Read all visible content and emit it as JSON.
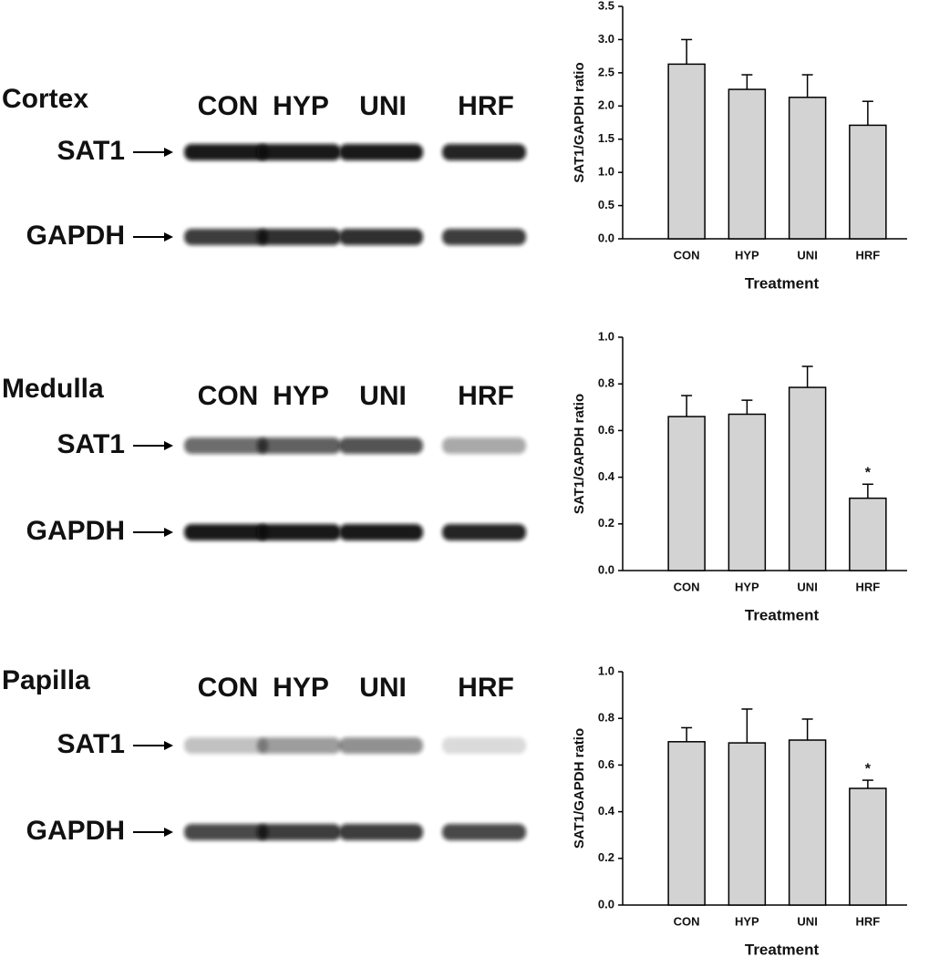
{
  "blots": [
    {
      "region": "Cortex",
      "lanes": [
        "CON",
        "HYP",
        "UNI",
        "HRF"
      ],
      "bands": [
        "SAT1",
        "GAPDH"
      ]
    },
    {
      "region": "Medulla",
      "lanes": [
        "CON",
        "HYP",
        "UNI",
        "HRF"
      ],
      "bands": [
        "SAT1",
        "GAPDH"
      ]
    },
    {
      "region": "Papilla",
      "lanes": [
        "CON",
        "HYP",
        "UNI",
        "HRF"
      ],
      "bands": [
        "SAT1",
        "GAPDH"
      ]
    }
  ],
  "chart_data": [
    {
      "type": "bar",
      "ylabel": "SAT1/GAPDH ratio",
      "xlabel": "Treatment",
      "color": "#d3d3d3",
      "categories": [
        "CON",
        "HYP",
        "UNI",
        "HRF"
      ],
      "values": [
        2.63,
        2.25,
        2.13,
        1.71
      ],
      "errors": [
        0.37,
        0.22,
        0.34,
        0.36
      ],
      "ylim": [
        0,
        3.5
      ],
      "yticks": [
        {
          "value": 0,
          "label": "0.0"
        },
        0.5,
        {
          "value": 1,
          "label": "1.0"
        },
        1.5,
        {
          "value": 2,
          "label": "2.0"
        },
        2.5,
        {
          "value": 3,
          "label": "3.0"
        },
        3.5
      ]
    },
    {
      "type": "bar",
      "ylabel": "SAT1/GAPDH ratio",
      "xlabel": "Treatment",
      "color": "#d3d3d3",
      "categories": [
        "CON",
        "HYP",
        "UNI",
        "HRF"
      ],
      "values": [
        0.66,
        0.67,
        0.785,
        0.31
      ],
      "errors": [
        0.09,
        0.06,
        0.09,
        0.06
      ],
      "value_annotations": [
        null,
        null,
        null,
        "*"
      ],
      "ylim": [
        0,
        1
      ],
      "yticks": [
        {
          "value": 0,
          "label": "0.0"
        },
        0.2,
        0.4,
        0.6,
        0.8,
        {
          "value": 1,
          "label": "1.0"
        }
      ]
    },
    {
      "type": "bar",
      "ylabel": "SAT1/GAPDH ratio",
      "xlabel": "Treatment",
      "color": "#d3d3d3",
      "categories": [
        "CON",
        "HYP",
        "UNI",
        "HRF"
      ],
      "values": [
        0.7,
        0.695,
        0.707,
        0.5
      ],
      "errors": [
        0.06,
        0.145,
        0.09,
        0.035
      ],
      "value_annotations": [
        null,
        null,
        null,
        "*"
      ],
      "ylim": [
        0,
        1
      ],
      "yticks": [
        {
          "value": 0,
          "label": "0.0"
        },
        0.2,
        0.4,
        0.6,
        0.8,
        {
          "value": 1,
          "label": "1.0"
        }
      ]
    }
  ]
}
